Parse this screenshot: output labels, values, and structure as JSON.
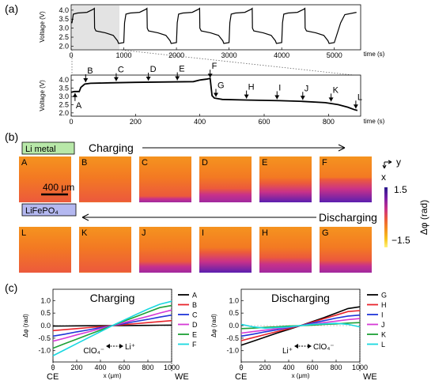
{
  "panels": {
    "a": {
      "label": "(a)",
      "top_plot": {
        "ylabel": "Voltage (V)",
        "xlabel": "time (s)",
        "y_ticks": [
          "2.0",
          "2.5",
          "3.0",
          "3.5",
          "4.0"
        ],
        "x_ticks": [
          "0",
          "1000",
          "2000",
          "3000",
          "4000",
          "5000"
        ],
        "x_range": [
          0,
          5500
        ],
        "y_range": [
          1.8,
          4.3
        ],
        "cycle_period_s": 1000,
        "cycles": 5
      },
      "bottom_plot": {
        "ylabel": "Voltage (V)",
        "xlabel": "time (s)",
        "y_ticks": [
          "2.0",
          "2.5",
          "3.0",
          "3.5",
          "4.0"
        ],
        "x_ticks": [
          "0",
          "200",
          "400",
          "600",
          "800"
        ],
        "x_range": [
          0,
          900
        ],
        "y_range": [
          1.8,
          4.3
        ],
        "voltage_curve": {
          "t": [
            0,
            10,
            25,
            30,
            42,
            60,
            120,
            200,
            300,
            380,
            400,
            420,
            432,
            438,
            445,
            470,
            550,
            650,
            720,
            790,
            830,
            860,
            880,
            890
          ],
          "v": [
            3.25,
            3.3,
            3.3,
            3.55,
            3.75,
            3.8,
            3.83,
            3.86,
            3.88,
            3.9,
            4.0,
            4.05,
            4.1,
            3.05,
            2.9,
            2.82,
            2.78,
            2.74,
            2.7,
            2.62,
            2.5,
            2.35,
            2.2,
            2.15
          ]
        },
        "markers": [
          {
            "label": "A",
            "t": 12,
            "v": 3.3
          },
          {
            "label": "B",
            "t": 45,
            "v": 3.77
          },
          {
            "label": "C",
            "t": 140,
            "v": 3.84
          },
          {
            "label": "D",
            "t": 240,
            "v": 3.87
          },
          {
            "label": "E",
            "t": 330,
            "v": 3.89
          },
          {
            "label": "F",
            "t": 432,
            "v": 4.05
          },
          {
            "label": "G",
            "t": 450,
            "v": 2.88
          },
          {
            "label": "H",
            "t": 545,
            "v": 2.78
          },
          {
            "label": "I",
            "t": 640,
            "v": 2.74
          },
          {
            "label": "J",
            "t": 720,
            "v": 2.7
          },
          {
            "label": "K",
            "t": 808,
            "v": 2.6
          },
          {
            "label": "L",
            "t": 885,
            "v": 2.17
          }
        ]
      }
    },
    "b": {
      "label": "(b)",
      "li_metal": "Li metal",
      "lifepo4": "LiFePO₄",
      "charging": "Charging",
      "discharging": "Discharging",
      "scale_bar": "400 μm",
      "axis_x": "x",
      "axis_y": "y",
      "colorbar_label": "Δφ (rad)",
      "colorbar_max": "1.5",
      "colorbar_min": "−1.5",
      "colorbar_colors": [
        "#2a1a8c",
        "#7a1fa8",
        "#c8318a",
        "#ec5a3c",
        "#f5921f",
        "#f7c61e",
        "#fff27a"
      ],
      "top_row": [
        {
          "label": "A",
          "purple": 0.0
        },
        {
          "label": "B",
          "purple": 0.05
        },
        {
          "label": "C",
          "purple": 0.25
        },
        {
          "label": "D",
          "purple": 0.55
        },
        {
          "label": "E",
          "purple": 0.75
        },
        {
          "label": "F",
          "purple": 0.95
        }
      ],
      "bottom_row": [
        {
          "label": "L",
          "purple": 0.0
        },
        {
          "label": "K",
          "purple": 0.05
        },
        {
          "label": "J",
          "purple": 0.45
        },
        {
          "label": "I",
          "purple": 0.8
        },
        {
          "label": "H",
          "purple": 0.6
        },
        {
          "label": "G",
          "purple": 0.5
        }
      ]
    },
    "c": {
      "label": "(c)",
      "charging": {
        "title": "Charging",
        "ylabel": "Δφ (rad)",
        "xlabel": "x (μm)",
        "y_ticks": [
          "-1.0",
          "-0.5",
          "0.0",
          "0.5",
          "1.0"
        ],
        "x_ticks": [
          "0",
          "200",
          "400",
          "600",
          "800",
          "1000"
        ],
        "left_edge": "CE",
        "right_edge": "WE",
        "ion_left": "ClO₄⁻",
        "ion_right": "Li⁺",
        "x": [
          0,
          100,
          200,
          300,
          400,
          500,
          600,
          700,
          800,
          900,
          1000
        ],
        "series": [
          {
            "name": "A",
            "color": "#000000",
            "values": [
              -0.02,
              -0.015,
              -0.01,
              -0.005,
              0.0,
              0.0,
              0.0,
              0.005,
              0.01,
              0.015,
              0.02
            ]
          },
          {
            "name": "B",
            "color": "#e8242c",
            "values": [
              -0.2,
              -0.16,
              -0.12,
              -0.08,
              -0.04,
              0.0,
              0.04,
              0.08,
              0.12,
              0.16,
              0.2
            ]
          },
          {
            "name": "C",
            "color": "#2035d8",
            "values": [
              -0.42,
              -0.34,
              -0.25,
              -0.17,
              -0.08,
              0.0,
              0.08,
              0.17,
              0.25,
              0.34,
              0.42
            ]
          },
          {
            "name": "D",
            "color": "#d63ad6",
            "values": [
              -0.62,
              -0.5,
              -0.37,
              -0.25,
              -0.12,
              0.0,
              0.12,
              0.25,
              0.37,
              0.5,
              0.62
            ]
          },
          {
            "name": "E",
            "color": "#1ea035",
            "values": [
              -0.9,
              -0.72,
              -0.54,
              -0.36,
              -0.18,
              0.0,
              0.18,
              0.36,
              0.54,
              0.72,
              0.8
            ]
          },
          {
            "name": "F",
            "color": "#19d8e0",
            "values": [
              -1.2,
              -0.96,
              -0.72,
              -0.48,
              -0.24,
              0.0,
              0.22,
              0.44,
              0.66,
              0.85,
              0.97
            ]
          }
        ]
      },
      "discharging": {
        "title": "Discharging",
        "ylabel": "Δφ (rad)",
        "xlabel": "x (μm)",
        "y_ticks": [
          "-1.0",
          "-0.5",
          "0.0",
          "0.5",
          "1.0"
        ],
        "x_ticks": [
          "0",
          "200",
          "400",
          "600",
          "800",
          "1000"
        ],
        "left_edge": "CE",
        "right_edge": "WE",
        "ion_left": "Li⁺",
        "ion_right": "ClO₄⁻",
        "x": [
          0,
          100,
          200,
          300,
          400,
          500,
          600,
          700,
          800,
          900,
          1000
        ],
        "series": [
          {
            "name": "G",
            "color": "#000000",
            "values": [
              -0.78,
              -0.62,
              -0.46,
              -0.3,
              -0.15,
              0.0,
              0.16,
              0.32,
              0.5,
              0.68,
              0.75
            ]
          },
          {
            "name": "H",
            "color": "#e8242c",
            "values": [
              -0.6,
              -0.48,
              -0.36,
              -0.24,
              -0.12,
              0.0,
              0.14,
              0.28,
              0.42,
              0.56,
              0.6
            ]
          },
          {
            "name": "I",
            "color": "#2035d8",
            "values": [
              -0.42,
              -0.34,
              -0.25,
              -0.17,
              -0.08,
              0.0,
              0.1,
              0.2,
              0.3,
              0.38,
              0.42
            ]
          },
          {
            "name": "J",
            "color": "#d63ad6",
            "values": [
              -0.3,
              -0.24,
              -0.18,
              -0.12,
              -0.06,
              0.0,
              0.06,
              0.12,
              0.18,
              0.24,
              0.28
            ]
          },
          {
            "name": "K",
            "color": "#1ea035",
            "values": [
              -0.12,
              -0.1,
              -0.07,
              -0.05,
              -0.02,
              0.0,
              0.02,
              0.05,
              0.07,
              0.1,
              0.12
            ]
          },
          {
            "name": "L",
            "color": "#19d8e0",
            "values": [
              0.05,
              -0.05,
              -0.1,
              -0.08,
              -0.05,
              0.0,
              0.05,
              0.07,
              0.09,
              0.05,
              -0.05
            ]
          }
        ]
      }
    }
  }
}
